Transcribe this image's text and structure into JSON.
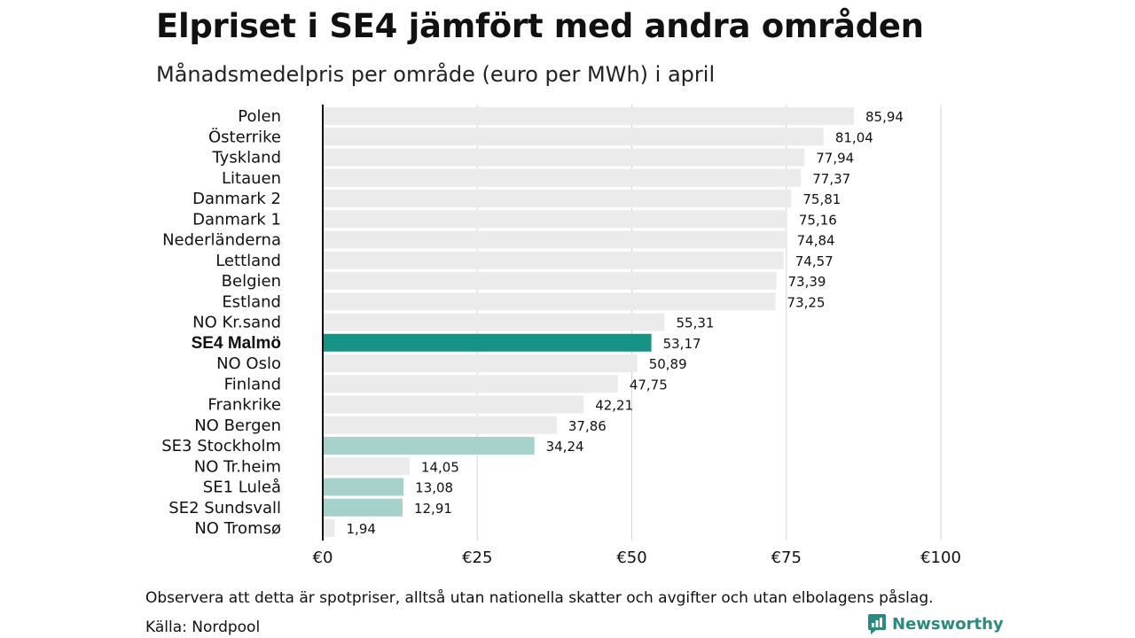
{
  "title": "Elpriset i SE4 jämfört med andra områden",
  "subtitle": "Månadsmedelpris per område (euro per MWh) i april",
  "note": "Observera att detta är spotpriser, alltså utan nationella skatter och avgifter och utan elbolagens påslag.",
  "source": "Källa: Nordpool",
  "brand": "Newsworthy",
  "colors": {
    "default_bar": "#ebebeb",
    "highlight_bar": "#159486",
    "se_bar": "#a6d2cb",
    "grid": "#d4d4d4",
    "axis": "#111111"
  },
  "chart_data": {
    "type": "bar",
    "orientation": "horizontal",
    "categories": [
      "Polen",
      "Österrike",
      "Tyskland",
      "Litauen",
      "Danmark  2",
      "Danmark  1",
      "Nederländerna",
      "Lettland",
      "Belgien",
      "Estland",
      "NO Kr.sand",
      "SE4 Malmö",
      "NO Oslo",
      "Finland",
      "Frankrike",
      "NO Bergen",
      "SE3  Stockholm",
      "NO Tr.heim",
      "SE1  Luleå",
      "SE2  Sundsvall",
      "NO Tromsø"
    ],
    "values": [
      85.94,
      81.04,
      77.94,
      77.37,
      75.81,
      75.16,
      74.84,
      74.57,
      73.39,
      73.25,
      55.31,
      53.17,
      50.89,
      47.75,
      42.21,
      37.86,
      34.24,
      14.05,
      13.08,
      12.91,
      1.94
    ],
    "value_labels": [
      "85,94",
      "81,04",
      "77,94",
      "77,37",
      "75,81",
      "75,16",
      "74,84",
      "74,57",
      "73,39",
      "73,25",
      "55,31",
      "53,17",
      "50,89",
      "47,75",
      "42,21",
      "37,86",
      "34,24",
      "14,05",
      "13,08",
      "12,91",
      "1,94"
    ],
    "highlight": [
      "default",
      "default",
      "default",
      "default",
      "default",
      "default",
      "default",
      "default",
      "default",
      "default",
      "default",
      "highlight",
      "default",
      "default",
      "default",
      "default",
      "se",
      "default",
      "se",
      "se",
      "default"
    ],
    "xlim": [
      0,
      100
    ],
    "xticks": [
      0,
      25,
      50,
      75,
      100
    ],
    "xtick_labels": [
      "€0",
      "€25",
      "€50",
      "€75",
      "€100"
    ],
    "grid": true,
    "legend": "none"
  }
}
